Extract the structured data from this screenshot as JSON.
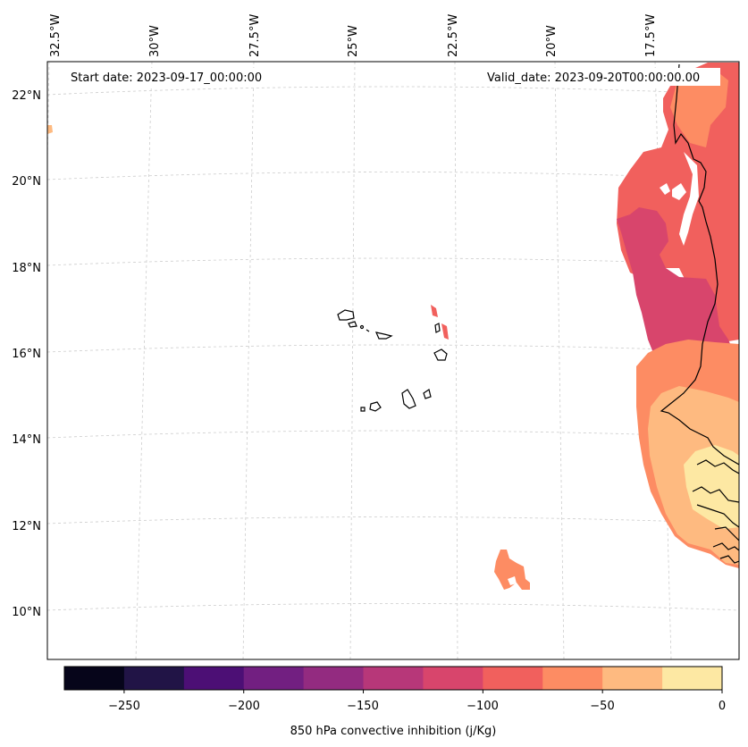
{
  "map": {
    "start_date": "Start date: 2023-09-17_00:00:00",
    "valid_date": "Valid_date: 2023-09-20T00:00:00.00",
    "lon_labels": [
      "32.5°W",
      "30°W",
      "27.5°W",
      "25°W",
      "22.5°W",
      "20°W",
      "17.5°W"
    ],
    "lat_labels": [
      "22°N",
      "20°N",
      "18°N",
      "16°N",
      "14°N",
      "12°N",
      "10°N"
    ]
  },
  "colorbar": {
    "label": "850 hPa convective inhibition (j/Kg)",
    "ticks": [
      "−250",
      "−200",
      "−150",
      "−100",
      "−50",
      "0"
    ],
    "tick_values": [
      -250,
      -200,
      -150,
      -100,
      -50,
      0
    ],
    "range": [
      -275,
      0
    ],
    "colors": [
      "#06051a",
      "#211446",
      "#4c0f75",
      "#721f81",
      "#932b80",
      "#b73779",
      "#d8456c",
      "#f1605d",
      "#fd8c63",
      "#feba80",
      "#fde8a3"
    ]
  },
  "legend_colors": {
    "cin_-25_0": "#fde8a3",
    "cin_-50_-25": "#feba80",
    "cin_-75_-50": "#fd8c63",
    "cin_-100_-75": "#f1605d",
    "cin_-125_-100": "#d8456c"
  }
}
